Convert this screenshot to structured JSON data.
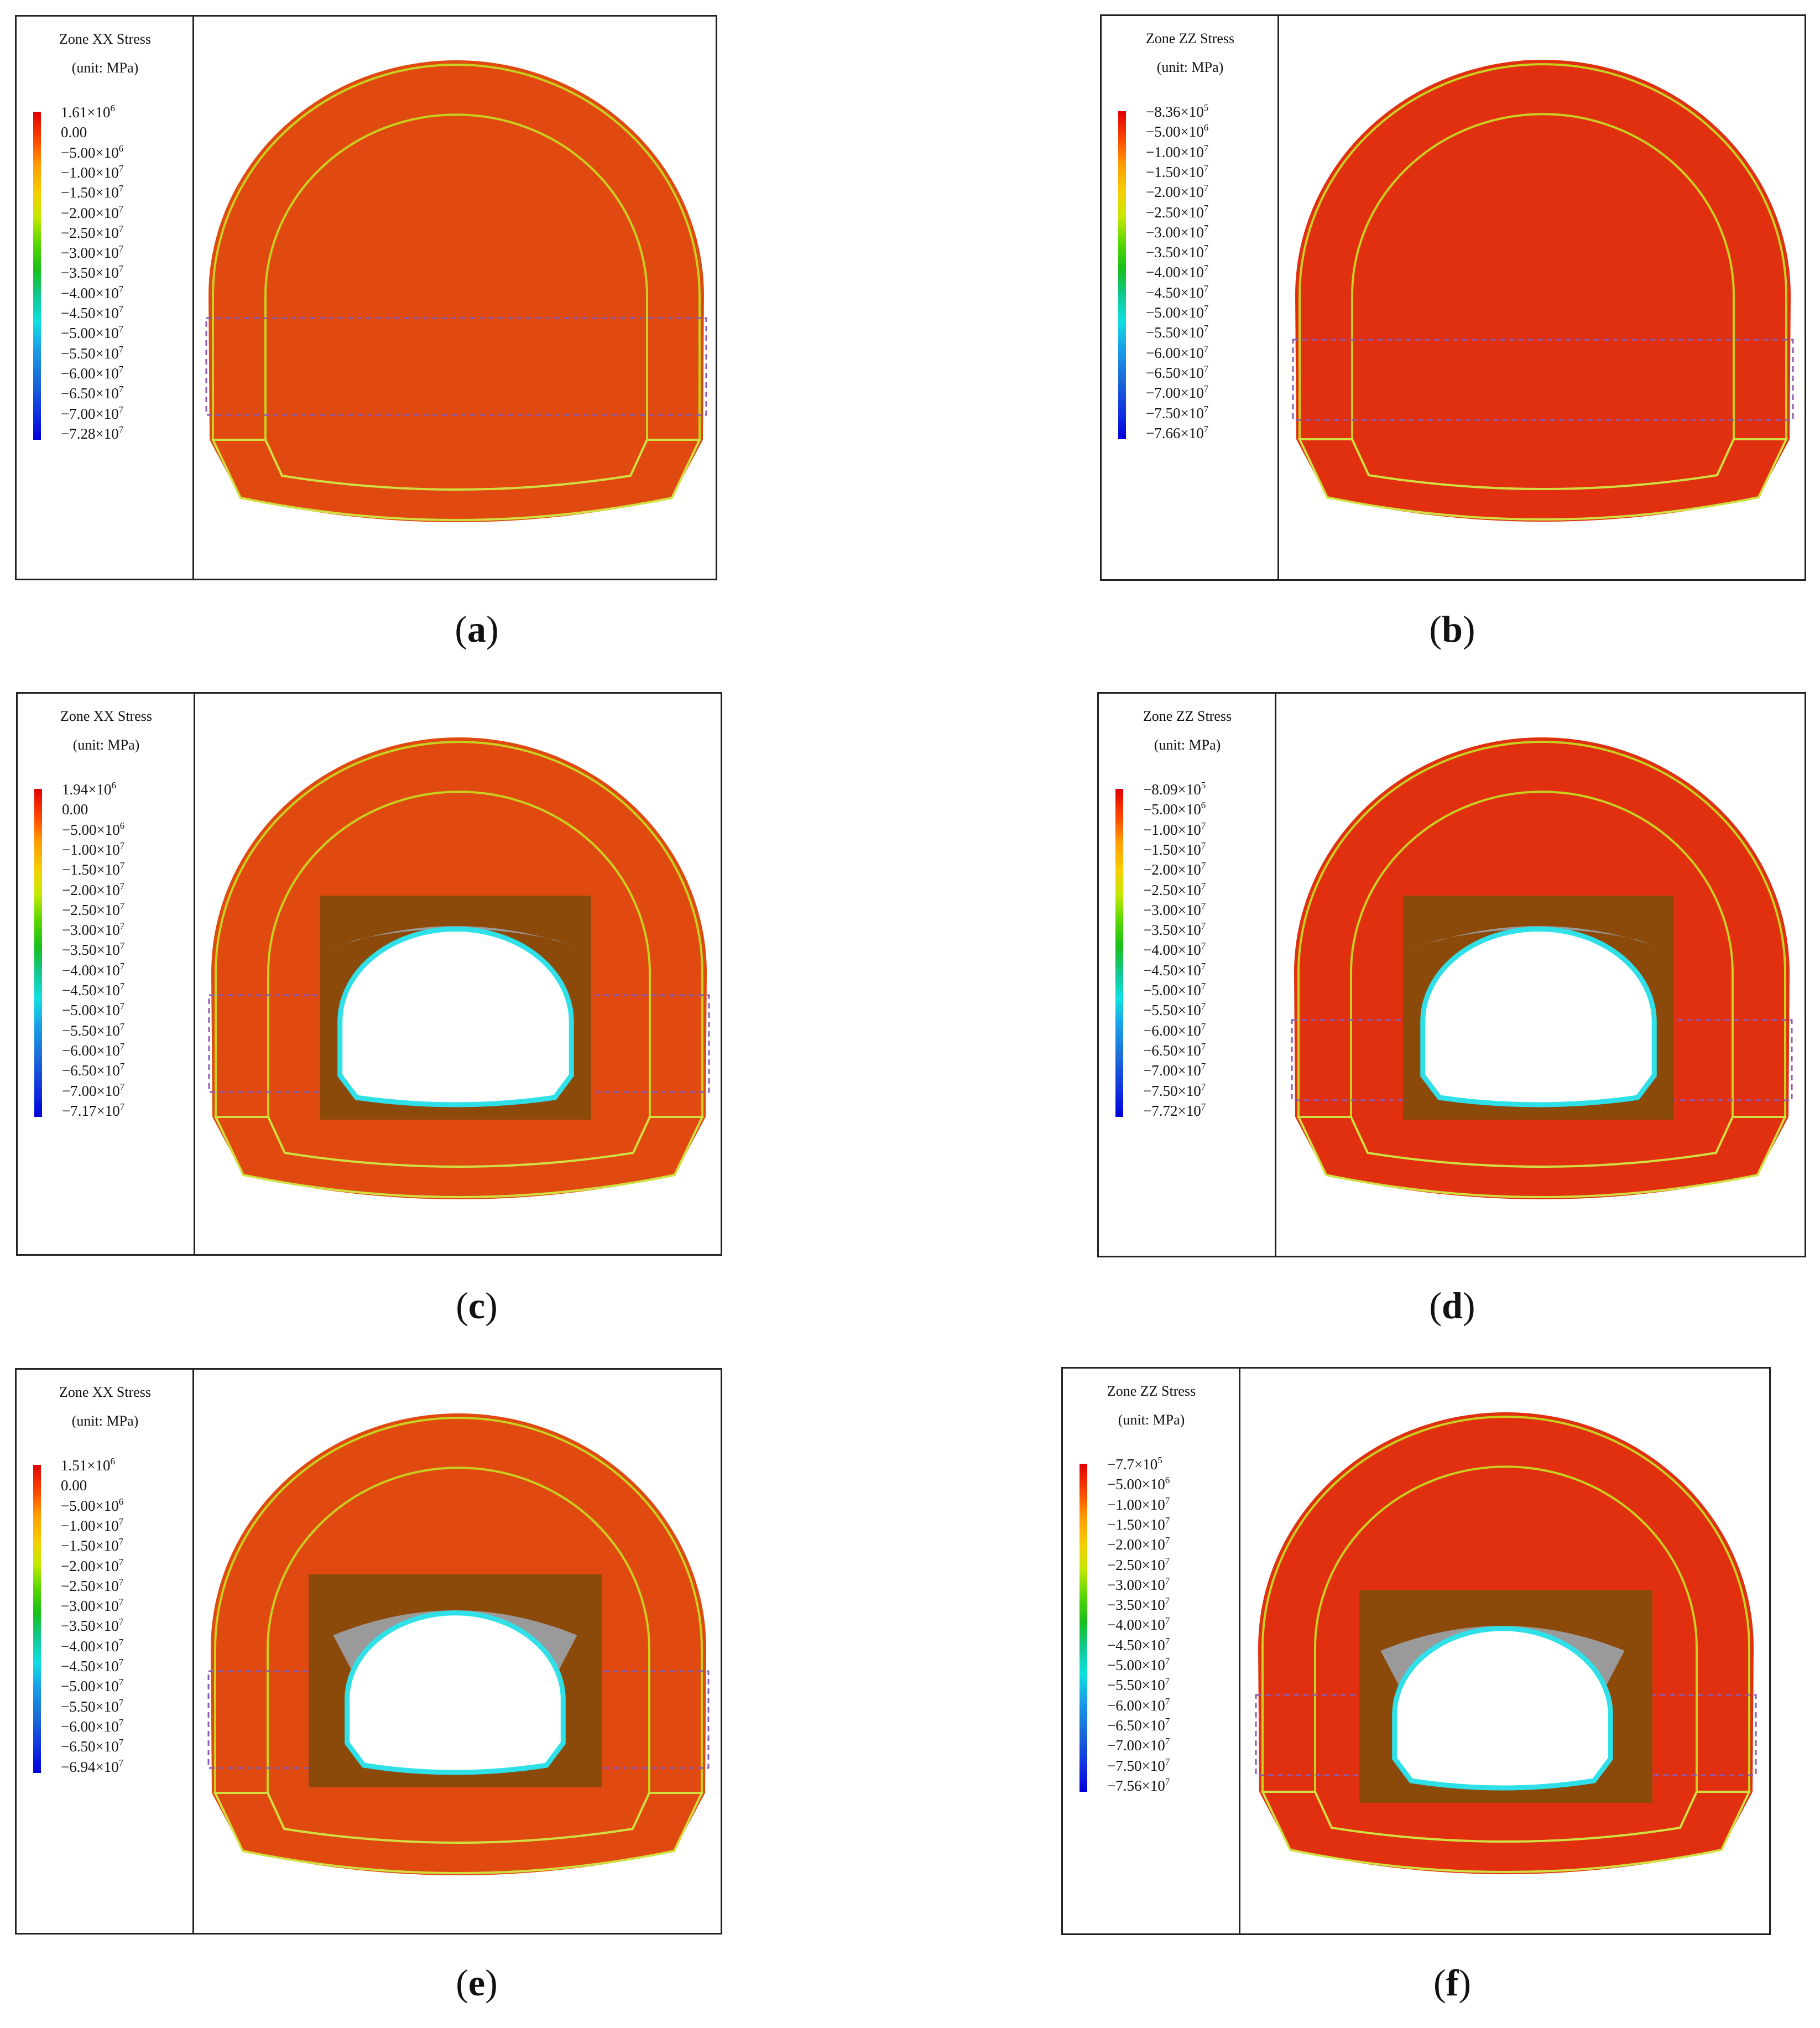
{
  "panels": [
    {
      "id": "a",
      "caption_letter": "a",
      "legend_title": "Zone XX Stress",
      "legend_unit": "(unit: MPa)",
      "variant": "xx",
      "inner_box": false,
      "ticks": [
        {
          "m": "1.61",
          "e": "6"
        },
        {
          "m": "0.00",
          "e": ""
        },
        {
          "m": "−5.00",
          "e": "6"
        },
        {
          "m": "−1.00",
          "e": "7"
        },
        {
          "m": "−1.50",
          "e": "7"
        },
        {
          "m": "−2.00",
          "e": "7"
        },
        {
          "m": "−2.50",
          "e": "7"
        },
        {
          "m": "−3.00",
          "e": "7"
        },
        {
          "m": "−3.50",
          "e": "7"
        },
        {
          "m": "−4.00",
          "e": "7"
        },
        {
          "m": "−4.50",
          "e": "7"
        },
        {
          "m": "−5.00",
          "e": "7"
        },
        {
          "m": "−5.50",
          "e": "7"
        },
        {
          "m": "−6.00",
          "e": "7"
        },
        {
          "m": "−6.50",
          "e": "7"
        },
        {
          "m": "−7.00",
          "e": "7"
        },
        {
          "m": "−7.28",
          "e": "7"
        }
      ]
    },
    {
      "id": "b",
      "caption_letter": "b",
      "legend_title": "Zone ZZ Stress",
      "legend_unit": "(unit: MPa)",
      "variant": "zz",
      "inner_box": false,
      "ticks": [
        {
          "m": "−8.36",
          "e": "5"
        },
        {
          "m": "−5.00",
          "e": "6"
        },
        {
          "m": "−1.00",
          "e": "7"
        },
        {
          "m": "−1.50",
          "e": "7"
        },
        {
          "m": "−2.00",
          "e": "7"
        },
        {
          "m": "−2.50",
          "e": "7"
        },
        {
          "m": "−3.00",
          "e": "7"
        },
        {
          "m": "−3.50",
          "e": "7"
        },
        {
          "m": "−4.00",
          "e": "7"
        },
        {
          "m": "−4.50",
          "e": "7"
        },
        {
          "m": "−5.00",
          "e": "7"
        },
        {
          "m": "−5.50",
          "e": "7"
        },
        {
          "m": "−6.00",
          "e": "7"
        },
        {
          "m": "−6.50",
          "e": "7"
        },
        {
          "m": "−7.00",
          "e": "7"
        },
        {
          "m": "−7.50",
          "e": "7"
        },
        {
          "m": "−7.66",
          "e": "7"
        }
      ]
    },
    {
      "id": "c",
      "caption_letter": "c",
      "legend_title": "Zone XX Stress",
      "legend_unit": "(unit: MPa)",
      "variant": "xx",
      "inner_box": true,
      "ticks": [
        {
          "m": "1.94",
          "e": "6"
        },
        {
          "m": "0.00",
          "e": ""
        },
        {
          "m": "−5.00",
          "e": "6"
        },
        {
          "m": "−1.00",
          "e": "7"
        },
        {
          "m": "−1.50",
          "e": "7"
        },
        {
          "m": "−2.00",
          "e": "7"
        },
        {
          "m": "−2.50",
          "e": "7"
        },
        {
          "m": "−3.00",
          "e": "7"
        },
        {
          "m": "−3.50",
          "e": "7"
        },
        {
          "m": "−4.00",
          "e": "7"
        },
        {
          "m": "−4.50",
          "e": "7"
        },
        {
          "m": "−5.00",
          "e": "7"
        },
        {
          "m": "−5.50",
          "e": "7"
        },
        {
          "m": "−6.00",
          "e": "7"
        },
        {
          "m": "−6.50",
          "e": "7"
        },
        {
          "m": "−7.00",
          "e": "7"
        },
        {
          "m": "−7.17",
          "e": "7"
        }
      ]
    },
    {
      "id": "d",
      "caption_letter": "d",
      "legend_title": "Zone ZZ Stress",
      "legend_unit": "(unit: MPa)",
      "variant": "zz",
      "inner_box": true,
      "ticks": [
        {
          "m": "−8.09",
          "e": "5"
        },
        {
          "m": "−5.00",
          "e": "6"
        },
        {
          "m": "−1.00",
          "e": "7"
        },
        {
          "m": "−1.50",
          "e": "7"
        },
        {
          "m": "−2.00",
          "e": "7"
        },
        {
          "m": "−2.50",
          "e": "7"
        },
        {
          "m": "−3.00",
          "e": "7"
        },
        {
          "m": "−3.50",
          "e": "7"
        },
        {
          "m": "−4.00",
          "e": "7"
        },
        {
          "m": "−4.50",
          "e": "7"
        },
        {
          "m": "−5.00",
          "e": "7"
        },
        {
          "m": "−5.50",
          "e": "7"
        },
        {
          "m": "−6.00",
          "e": "7"
        },
        {
          "m": "−6.50",
          "e": "7"
        },
        {
          "m": "−7.00",
          "e": "7"
        },
        {
          "m": "−7.50",
          "e": "7"
        },
        {
          "m": "−7.72",
          "e": "7"
        }
      ]
    },
    {
      "id": "e",
      "caption_letter": "e",
      "legend_title": "Zone XX Stress",
      "legend_unit": "(unit: MPa)",
      "variant": "xx",
      "inner_box": true,
      "ticks": [
        {
          "m": "1.51",
          "e": "6"
        },
        {
          "m": "0.00",
          "e": ""
        },
        {
          "m": "−5.00",
          "e": "6"
        },
        {
          "m": "−1.00",
          "e": "7"
        },
        {
          "m": "−1.50",
          "e": "7"
        },
        {
          "m": "−2.00",
          "e": "7"
        },
        {
          "m": "−2.50",
          "e": "7"
        },
        {
          "m": "−3.00",
          "e": "7"
        },
        {
          "m": "−3.50",
          "e": "7"
        },
        {
          "m": "−4.00",
          "e": "7"
        },
        {
          "m": "−4.50",
          "e": "7"
        },
        {
          "m": "−5.00",
          "e": "7"
        },
        {
          "m": "−5.50",
          "e": "7"
        },
        {
          "m": "−6.00",
          "e": "7"
        },
        {
          "m": "−6.50",
          "e": "7"
        },
        {
          "m": "−6.94",
          "e": "7"
        }
      ]
    },
    {
      "id": "f",
      "caption_letter": "f",
      "legend_title": "Zone ZZ Stress",
      "legend_unit": "(unit: MPa)",
      "variant": "zz",
      "inner_box": true,
      "ticks": [
        {
          "m": "−7.7",
          "e": "5"
        },
        {
          "m": "−5.00",
          "e": "6"
        },
        {
          "m": "−1.00",
          "e": "7"
        },
        {
          "m": "−1.50",
          "e": "7"
        },
        {
          "m": "−2.00",
          "e": "7"
        },
        {
          "m": "−2.50",
          "e": "7"
        },
        {
          "m": "−3.00",
          "e": "7"
        },
        {
          "m": "−3.50",
          "e": "7"
        },
        {
          "m": "−4.00",
          "e": "7"
        },
        {
          "m": "−4.50",
          "e": "7"
        },
        {
          "m": "−5.00",
          "e": "7"
        },
        {
          "m": "−5.50",
          "e": "7"
        },
        {
          "m": "−6.00",
          "e": "7"
        },
        {
          "m": "−6.50",
          "e": "7"
        },
        {
          "m": "−7.00",
          "e": "7"
        },
        {
          "m": "−7.50",
          "e": "7"
        },
        {
          "m": "−7.56",
          "e": "7"
        }
      ]
    }
  ],
  "colors": {
    "crown_dark_green": "#1f5a28",
    "dark_red": "#7a0d0d",
    "invert_blue": "#1a4ec8",
    "rock_brown": "#8b4a0a",
    "inner_cyan": "#2fe0e8",
    "gray_arch": "#9a9a9a",
    "dashed": "#8a5ab0"
  }
}
